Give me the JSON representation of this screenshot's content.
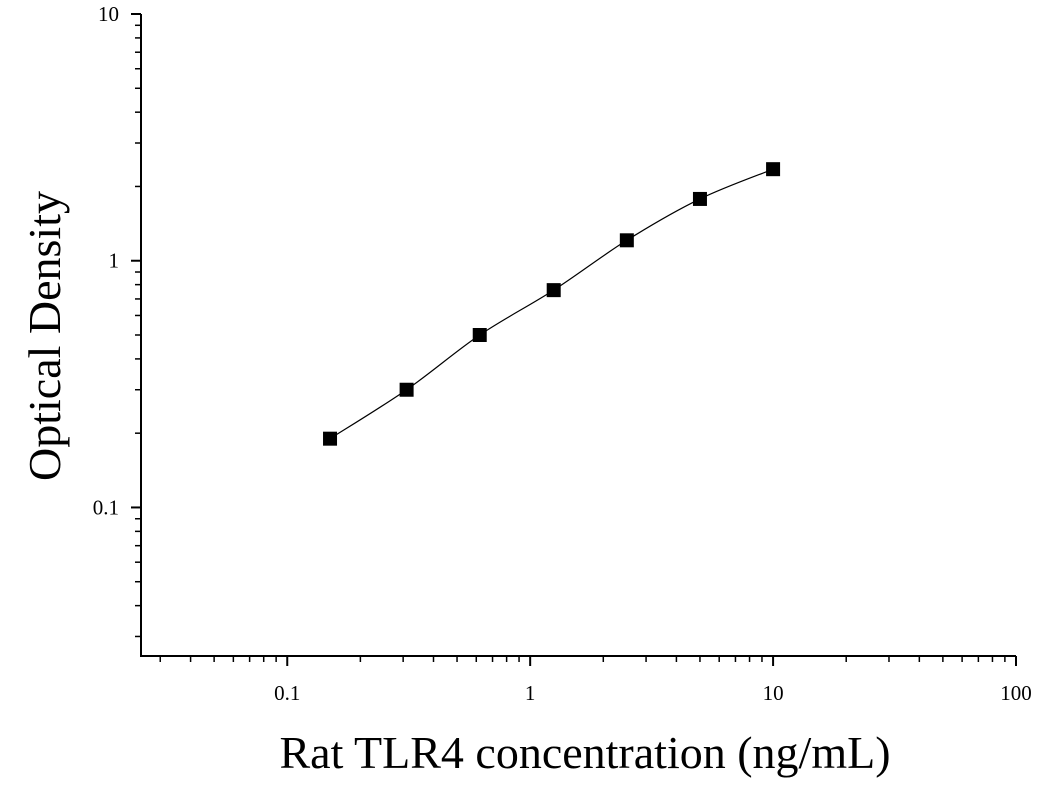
{
  "chart_data": {
    "type": "scatter",
    "title": "",
    "xlabel": "Rat TLR4 concentration (ng/mL)",
    "ylabel": "Optical Density",
    "x_scale": "log",
    "y_scale": "log",
    "xlim": [
      0.025,
      100
    ],
    "ylim": [
      0.025,
      10
    ],
    "x_ticks": [
      {
        "value": 0.1,
        "label": "0.1"
      },
      {
        "value": 1,
        "label": "1"
      },
      {
        "value": 10,
        "label": "10"
      },
      {
        "value": 100,
        "label": "100"
      }
    ],
    "y_ticks": [
      {
        "value": 0.1,
        "label": "0.1"
      },
      {
        "value": 1,
        "label": "1"
      },
      {
        "value": 10,
        "label": "10"
      }
    ],
    "grid": false,
    "series": [
      {
        "marker": "square",
        "color": "#000000",
        "fit_line": true,
        "points": [
          {
            "x": 0.15,
            "y": 0.19
          },
          {
            "x": 0.31,
            "y": 0.3
          },
          {
            "x": 0.62,
            "y": 0.5
          },
          {
            "x": 1.25,
            "y": 0.76
          },
          {
            "x": 2.5,
            "y": 1.21
          },
          {
            "x": 5,
            "y": 1.78
          },
          {
            "x": 10,
            "y": 2.35
          }
        ]
      }
    ]
  }
}
